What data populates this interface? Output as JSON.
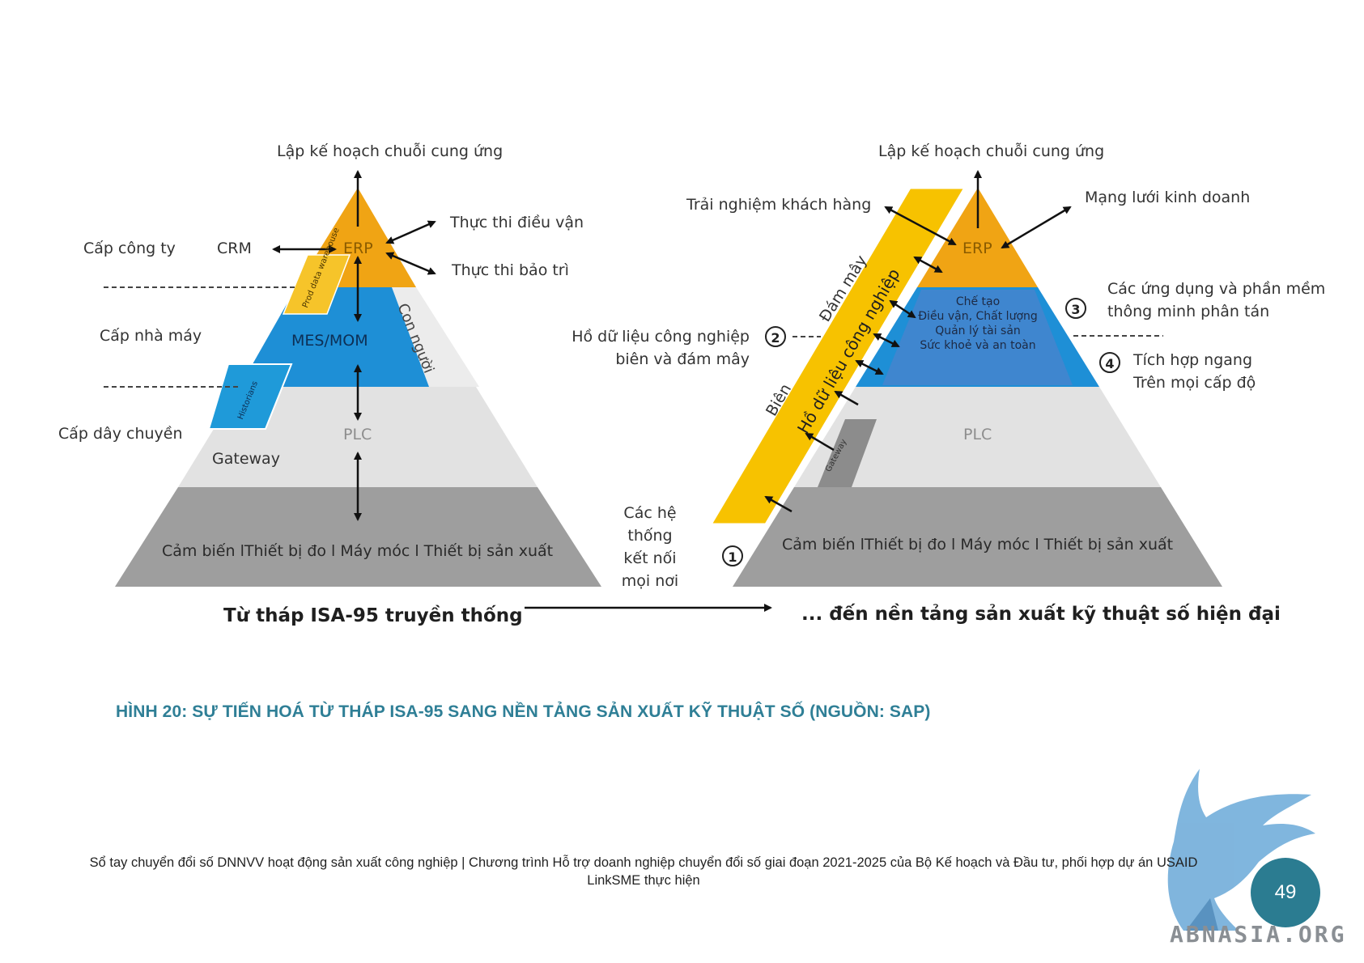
{
  "left_pyramid": {
    "top_label": "Lập kế hoạch chuỗi cung ứng",
    "erp": "ERP",
    "crm": "CRM",
    "exec_logistics": "Thực thi điều vận",
    "exec_maintenance": "Thực thi bảo trì",
    "level_company": "Cấp công ty",
    "level_plant": "Cấp nhà máy",
    "level_line": "Cấp dây chuyền",
    "prod_warehouse": "Prod data warehouse",
    "mes": "MES/MOM",
    "people": "Con người",
    "historians": "Historians",
    "plc": "PLC",
    "gateway": "Gateway",
    "devices": "Cảm biến lThiết bị đo l Máy móc l Thiết bị sản xuất",
    "title": "Từ tháp ISA-95 truyền thống"
  },
  "right_pyramid": {
    "top_label": "Lập kế hoạch chuỗi cung ứng",
    "customer": "Trải nghiệm khách hàng",
    "network": "Mạng lưới kinh doanh",
    "erp": "ERP",
    "cloud": "Đám mây",
    "datalake": "Hồ dữ liệu công nghiệp",
    "edge": "Biên",
    "mes_lines": [
      "Chế tạo",
      "Điều vận, Chất lượng",
      "Quản lý tài sản",
      "Sức khoẻ và an toàn"
    ],
    "apps": [
      "Các ứng dụng và phần mềm",
      "thông minh phân tán"
    ],
    "integration": [
      "Tích hợp ngang",
      "Trên mọi cấp độ"
    ],
    "lake_label": [
      "Hồ dữ liệu công nghiệp",
      "biên và đám mây"
    ],
    "connected": [
      "Các hệ",
      "thống",
      "kết nối",
      "mọi nơi"
    ],
    "gateway": "Gateway",
    "plc": "PLC",
    "devices": "Cảm biến lThiết bị đo l Máy móc l Thiết bị sản xuất",
    "title": "... đến nền tảng sản xuất kỹ thuật số hiện đại",
    "badges": [
      "1",
      "2",
      "3",
      "4"
    ]
  },
  "caption": "HÌNH 20: SỰ TIẾN HOÁ TỪ THÁP ISA-95 SANG NỀN TẢNG SẢN XUẤT KỸ THUẬT SỐ (NGUỒN: SAP)",
  "footer_line1": "Sổ tay chuyển đổi số DNNVV hoạt động sản xuất công nghiệp | Chương trình Hỗ trợ doanh nghiệp chuyển đổi số giai đoạn 2021-2025 của Bộ Kế hoạch và Đầu tư, phối hợp dự án USAID",
  "footer_line2": "LinkSME thực hiện",
  "page_number": "49",
  "watermark": "ABNASIA.ORG",
  "colors": {
    "orange": "#f0a414",
    "yellow": "#f7c200",
    "blue": "#1e8fd6",
    "blue_inner": "#3f86cf",
    "light_gray": "#e2e2e2",
    "dark_gray": "#9e9e9e",
    "caption": "#2f7f96",
    "page_badge": "#2b7c91"
  }
}
